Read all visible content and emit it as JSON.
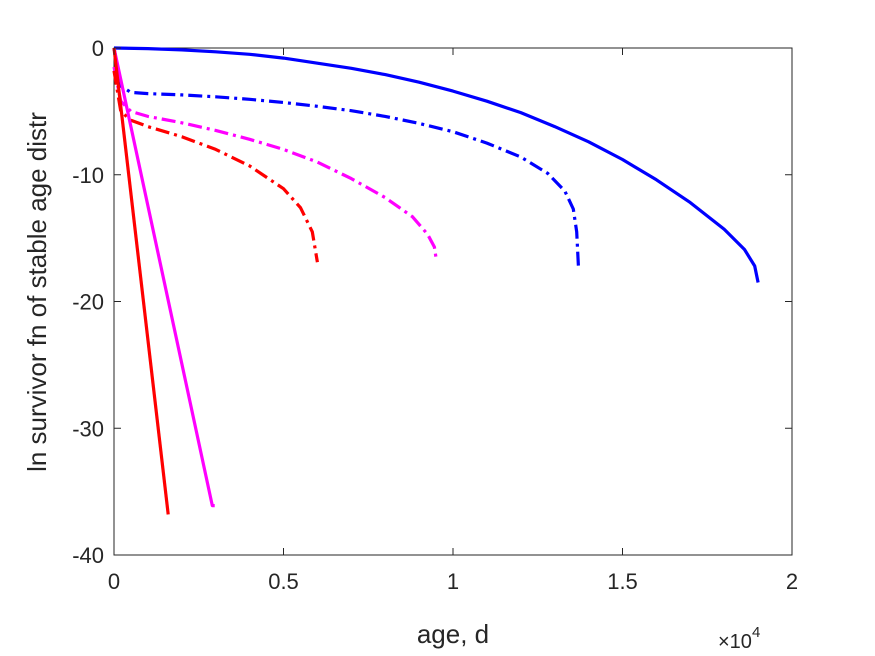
{
  "chart_data": {
    "type": "line",
    "title": "",
    "xlabel": "age, d",
    "ylabel": "ln survivor fn of stable age distr",
    "x_exponent_label": "×10",
    "x_exponent_power": "4",
    "xlim": [
      0,
      20000
    ],
    "ylim": [
      -40,
      0
    ],
    "x_ticks": [
      0,
      5000,
      10000,
      15000,
      20000
    ],
    "x_tick_labels": [
      "0",
      "0.5",
      "1",
      "1.5",
      "2"
    ],
    "y_ticks": [
      0,
      -10,
      -20,
      -30,
      -40
    ],
    "y_tick_labels": [
      "0",
      "-10",
      "-20",
      "-30",
      "-40"
    ],
    "grid": false,
    "legend": "none",
    "series": [
      {
        "color": "#0000ff",
        "dash": "solid",
        "points": [
          [
            0,
            0
          ],
          [
            1000,
            -0.05
          ],
          [
            2000,
            -0.15
          ],
          [
            3000,
            -0.3
          ],
          [
            4000,
            -0.5
          ],
          [
            5000,
            -0.8
          ],
          [
            6000,
            -1.2
          ],
          [
            7000,
            -1.6
          ],
          [
            8000,
            -2.1
          ],
          [
            9000,
            -2.7
          ],
          [
            10000,
            -3.4
          ],
          [
            11000,
            -4.2
          ],
          [
            12000,
            -5.1
          ],
          [
            13000,
            -6.2
          ],
          [
            14000,
            -7.4
          ],
          [
            15000,
            -8.8
          ],
          [
            16000,
            -10.4
          ],
          [
            17000,
            -12.2
          ],
          [
            18000,
            -14.3
          ],
          [
            18600,
            -15.9
          ],
          [
            18900,
            -17.2
          ],
          [
            19000,
            -18.5
          ]
        ]
      },
      {
        "color": "#0000ff",
        "dash": "dashdot",
        "points": [
          [
            0,
            0
          ],
          [
            200,
            -3.0
          ],
          [
            500,
            -3.5
          ],
          [
            1000,
            -3.6
          ],
          [
            2000,
            -3.7
          ],
          [
            3000,
            -3.85
          ],
          [
            4000,
            -4.05
          ],
          [
            5000,
            -4.3
          ],
          [
            6000,
            -4.6
          ],
          [
            7000,
            -4.95
          ],
          [
            8000,
            -5.4
          ],
          [
            9000,
            -5.95
          ],
          [
            10000,
            -6.6
          ],
          [
            11000,
            -7.5
          ],
          [
            12000,
            -8.6
          ],
          [
            12800,
            -9.9
          ],
          [
            13300,
            -11.3
          ],
          [
            13550,
            -12.7
          ],
          [
            13650,
            -14.5
          ],
          [
            13700,
            -17.2
          ]
        ]
      },
      {
        "color": "#ff00ff",
        "dash": "dashdot",
        "points": [
          [
            0,
            -1.5
          ],
          [
            200,
            -4.2
          ],
          [
            500,
            -5.0
          ],
          [
            1000,
            -5.4
          ],
          [
            2000,
            -5.9
          ],
          [
            3000,
            -6.5
          ],
          [
            4000,
            -7.2
          ],
          [
            5000,
            -8.0
          ],
          [
            6000,
            -9.0
          ],
          [
            7000,
            -10.3
          ],
          [
            8000,
            -11.8
          ],
          [
            8800,
            -13.3
          ],
          [
            9250,
            -14.7
          ],
          [
            9450,
            -15.7
          ],
          [
            9500,
            -16.6
          ]
        ]
      },
      {
        "color": "#ff0000",
        "dash": "dashdot",
        "points": [
          [
            0,
            -1.8
          ],
          [
            200,
            -5.0
          ],
          [
            500,
            -5.7
          ],
          [
            1000,
            -6.2
          ],
          [
            2000,
            -7.0
          ],
          [
            3000,
            -8.0
          ],
          [
            4000,
            -9.3
          ],
          [
            5000,
            -11.1
          ],
          [
            5500,
            -12.6
          ],
          [
            5850,
            -14.5
          ],
          [
            6000,
            -16.9
          ]
        ]
      },
      {
        "color": "#ff00ff",
        "dash": "solid",
        "points": [
          [
            0,
            0
          ],
          [
            2900,
            -36.1
          ],
          [
            2970,
            -36.1
          ]
        ]
      },
      {
        "color": "#ff0000",
        "dash": "solid",
        "points": [
          [
            0,
            0
          ],
          [
            1600,
            -36.8
          ]
        ]
      }
    ]
  }
}
